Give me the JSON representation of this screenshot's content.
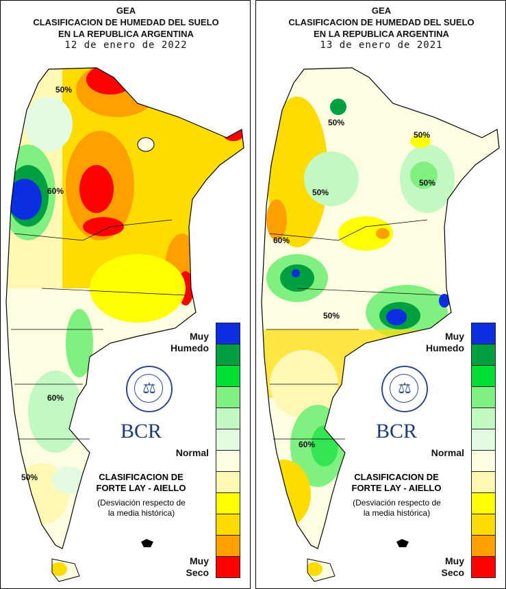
{
  "legend": {
    "colors": [
      "#0a2ee0",
      "#00a040",
      "#00dd33",
      "#80f080",
      "#c2f8c2",
      "#e2fae2",
      "#fffde2",
      "#fff8b4",
      "#ffff00",
      "#ffdc00",
      "#ffa000",
      "#ff0000"
    ],
    "top_label_1": "Muy",
    "top_label_2": "Humedo",
    "mid_label": "Normal",
    "bottom_label_1": "Muy",
    "bottom_label_2": "Seco"
  },
  "branding": {
    "logo_text": "BCR",
    "seal_text": "BOLSA DE COMERCIO DE ROSARIO"
  },
  "classification": {
    "line1": "CLASIFICACION DE",
    "line2": "FORTE LAY - AIELLO",
    "note1": "(Desviación respecto de",
    "note2": "la media histórica)"
  },
  "panels": [
    {
      "title1": "GEA",
      "title2": "CLASIFICACION DE HUMEDAD DEL SUELO",
      "title3": "EN LA REPUBLICA ARGENTINA",
      "date": "12 de enero de 2022",
      "contour_labels": [
        "50%",
        "60%",
        "50%",
        "60%"
      ]
    },
    {
      "title1": "GEA",
      "title2": "CLASIFICACION DE HUMEDAD DEL SUELO",
      "title3": "EN LA REPUBLICA ARGENTINA",
      "date": "13 de enero de 2021",
      "contour_labels": [
        "50%",
        "50%",
        "50%",
        "50%",
        "60%",
        "50%",
        "60%"
      ]
    }
  ]
}
